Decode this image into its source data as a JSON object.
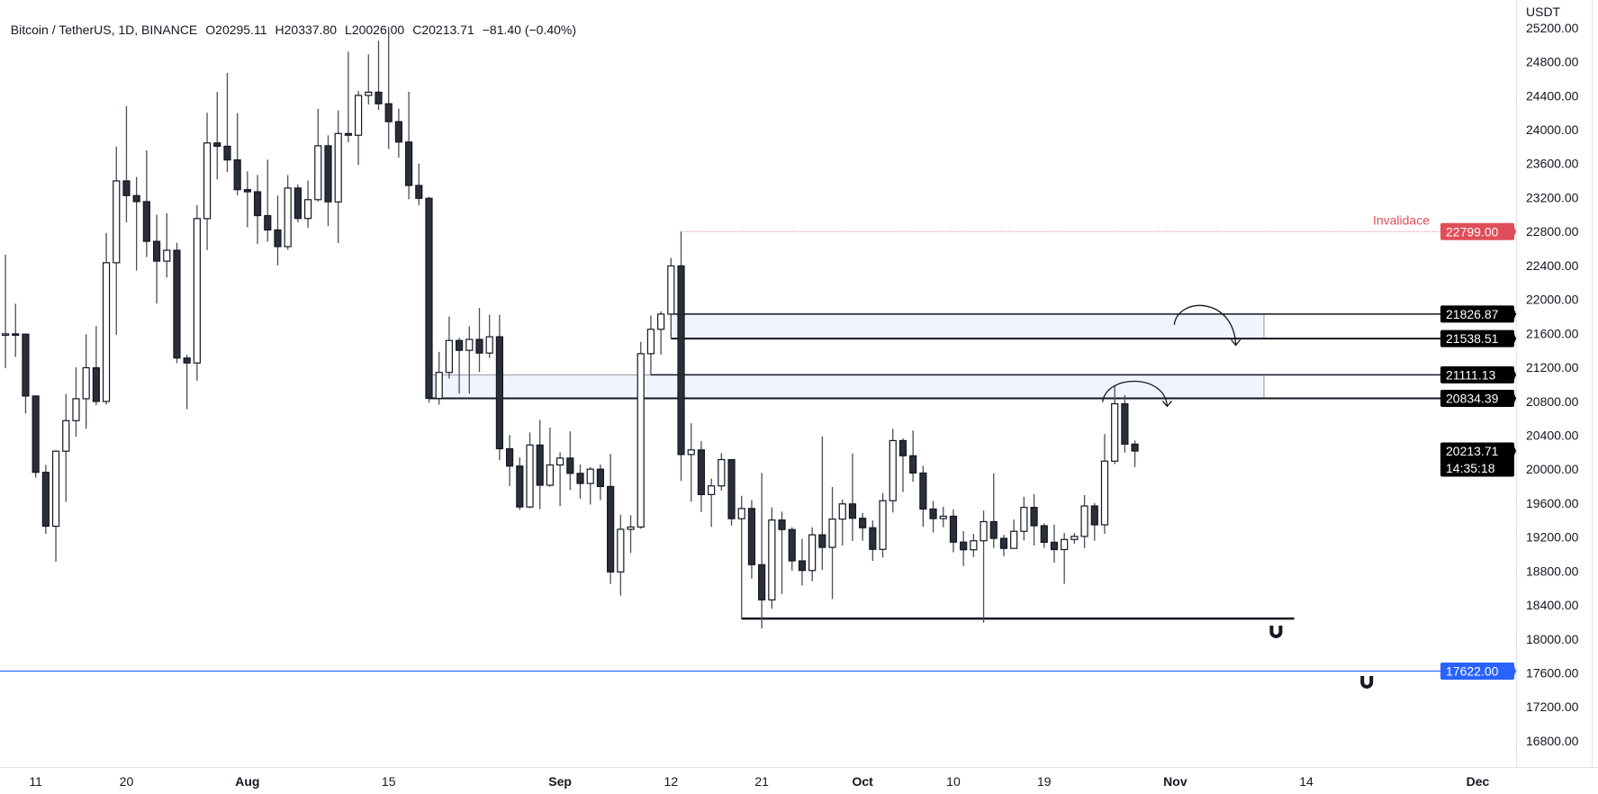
{
  "legend": {
    "symbol": "Bitcoin / TetherUS, 1D, BINANCE",
    "open": "O20295.11",
    "high": "H20337.80",
    "low": "L20026.00",
    "close": "C20213.71",
    "change": "−81.40 (−0.40%)"
  },
  "colors": {
    "bull_body": "#ffffff",
    "bear_body": "#2a2e39",
    "outline": "#131722",
    "wick": "#4a4e59",
    "invalidation": "#e04e58",
    "support_blue": "#2962ff",
    "zone_fill": "#f0f4fd",
    "badge": "#000000"
  },
  "chart_data": {
    "type": "candlestick",
    "title": "Bitcoin / TetherUS, 1D, BINANCE",
    "currency": "USDT",
    "start_date": "2022-07-08",
    "xlim": [
      -0.54,
      149.8
    ],
    "ylim": [
      16492,
      25527
    ],
    "y_ticks": [
      "25200.00",
      "24800.00",
      "24400.00",
      "24000.00",
      "23600.00",
      "23200.00",
      "22800.00",
      "22400.00",
      "22000.00",
      "21600.00",
      "21200.00",
      "20800.00",
      "20400.00",
      "20000.00",
      "19600.00",
      "19200.00",
      "18800.00",
      "18400.00",
      "18000.00",
      "17600.00",
      "17200.00",
      "16800.00"
    ],
    "x_ticks": [
      {
        "label": "11",
        "day": 3,
        "month": false
      },
      {
        "label": "20",
        "day": 12,
        "month": false
      },
      {
        "label": "Aug",
        "day": 24,
        "month": true
      },
      {
        "label": "15",
        "day": 38,
        "month": false
      },
      {
        "label": "Sep",
        "day": 55,
        "month": true
      },
      {
        "label": "12",
        "day": 66,
        "month": false
      },
      {
        "label": "21",
        "day": 75,
        "month": false
      },
      {
        "label": "Oct",
        "day": 85,
        "month": true
      },
      {
        "label": "10",
        "day": 94,
        "month": false
      },
      {
        "label": "19",
        "day": 103,
        "month": false
      },
      {
        "label": "Nov",
        "day": 116,
        "month": true
      },
      {
        "label": "14",
        "day": 129,
        "month": false
      },
      {
        "label": "Dec",
        "day": 146,
        "month": true
      }
    ],
    "ohlc": [
      [
        21590,
        22527,
        21189,
        21594
      ],
      [
        21594,
        21950,
        21322,
        21591
      ],
      [
        21591,
        21592,
        20655,
        20862
      ],
      [
        20862,
        20868,
        19900,
        19963
      ],
      [
        19963,
        20050,
        19240,
        19328
      ],
      [
        19328,
        20224,
        18910,
        20212
      ],
      [
        20212,
        20885,
        19616,
        20572
      ],
      [
        20572,
        21200,
        20383,
        20830
      ],
      [
        20830,
        21588,
        20477,
        21195
      ],
      [
        21195,
        21685,
        20752,
        20798
      ],
      [
        20798,
        22783,
        20762,
        22432
      ],
      [
        22432,
        23800,
        21583,
        23396
      ],
      [
        23396,
        24276,
        22906,
        23223
      ],
      [
        23223,
        23442,
        22341,
        23152
      ],
      [
        23152,
        23756,
        22500,
        22684
      ],
      [
        22684,
        22998,
        21950,
        22451
      ],
      [
        22451,
        23014,
        22257,
        22579
      ],
      [
        22579,
        22666,
        21250,
        21310
      ],
      [
        21310,
        21347,
        20706,
        21251
      ],
      [
        21251,
        23112,
        21042,
        22952
      ],
      [
        22952,
        24199,
        22582,
        23843
      ],
      [
        23843,
        24442,
        23414,
        23804
      ],
      [
        23804,
        24668,
        23502,
        23643
      ],
      [
        23643,
        24194,
        23227,
        23293
      ],
      [
        23293,
        23509,
        22850,
        23268
      ],
      [
        23268,
        23466,
        22655,
        22987
      ],
      [
        22987,
        23647,
        22681,
        22818
      ],
      [
        22818,
        23223,
        22400,
        22622
      ],
      [
        22622,
        23464,
        22586,
        23312
      ],
      [
        23312,
        23354,
        22909,
        22954
      ],
      [
        22954,
        23400,
        22844,
        23175
      ],
      [
        23175,
        24245,
        23154,
        23810
      ],
      [
        23810,
        23933,
        22865,
        23149
      ],
      [
        23149,
        24226,
        22664,
        23954
      ],
      [
        23954,
        24918,
        23852,
        23934
      ],
      [
        23934,
        24456,
        23583,
        24403
      ],
      [
        24403,
        24888,
        24296,
        24441
      ],
      [
        24441,
        25047,
        24232,
        24305
      ],
      [
        24305,
        25211,
        23773,
        24094
      ],
      [
        24094,
        24247,
        23671,
        23854
      ],
      [
        23854,
        24446,
        23180,
        23342
      ],
      [
        23342,
        23600,
        23111,
        23191
      ],
      [
        23191,
        23208,
        20783,
        20834
      ],
      [
        20834,
        21382,
        20761,
        21140
      ],
      [
        21140,
        21800,
        21069,
        21516
      ],
      [
        21516,
        21548,
        20890,
        21400
      ],
      [
        21400,
        21684,
        20890,
        21529
      ],
      [
        21529,
        21900,
        21145,
        21368
      ],
      [
        21368,
        21819,
        21310,
        21560
      ],
      [
        21560,
        21819,
        20107,
        20241
      ],
      [
        20241,
        20402,
        19800,
        20037
      ],
      [
        20037,
        20139,
        19520,
        19555
      ],
      [
        19555,
        20433,
        19540,
        20285
      ],
      [
        20285,
        20580,
        19530,
        19811
      ],
      [
        19811,
        20490,
        19793,
        20050
      ],
      [
        20050,
        20198,
        19565,
        20131
      ],
      [
        20131,
        20445,
        19754,
        19951
      ],
      [
        19951,
        20055,
        19652,
        19832
      ],
      [
        19832,
        20026,
        19583,
        20000
      ],
      [
        20000,
        20056,
        19635,
        19796
      ],
      [
        19796,
        20180,
        18649,
        18790
      ],
      [
        18790,
        19464,
        18510,
        19292
      ],
      [
        19292,
        19458,
        19012,
        19319
      ],
      [
        19319,
        21500,
        19298,
        21361
      ],
      [
        21361,
        21810,
        21111,
        21648
      ],
      [
        21648,
        21860,
        21350,
        21827
      ],
      [
        21827,
        22488,
        21538,
        22395
      ],
      [
        22395,
        22799,
        19860,
        20173
      ],
      [
        20173,
        20541,
        19617,
        20227
      ],
      [
        20227,
        20330,
        19497,
        19701
      ],
      [
        19701,
        19890,
        19320,
        19803
      ],
      [
        19803,
        20189,
        19748,
        20113
      ],
      [
        20113,
        20117,
        19336,
        19417
      ],
      [
        19417,
        19686,
        18232,
        19537
      ],
      [
        19537,
        19634,
        18711,
        18875
      ],
      [
        18875,
        19956,
        18125,
        18461
      ],
      [
        18461,
        19550,
        18356,
        19401
      ],
      [
        19401,
        19500,
        18531,
        19289
      ],
      [
        19289,
        19316,
        18805,
        18920
      ],
      [
        18920,
        19180,
        18629,
        18807
      ],
      [
        18807,
        19315,
        18680,
        19227
      ],
      [
        19227,
        20385,
        18816,
        19079
      ],
      [
        19079,
        19790,
        18471,
        19412
      ],
      [
        19412,
        19645,
        19101,
        19591
      ],
      [
        19591,
        20185,
        19155,
        19422
      ],
      [
        19422,
        19484,
        19159,
        19310
      ],
      [
        19310,
        19395,
        18920,
        19056
      ],
      [
        19056,
        19719,
        18959,
        19629
      ],
      [
        19629,
        20475,
        19490,
        20337
      ],
      [
        20337,
        20365,
        19730,
        20158
      ],
      [
        20158,
        20456,
        19853,
        19955
      ],
      [
        19955,
        20041,
        19320,
        19531
      ],
      [
        19531,
        19627,
        19254,
        19418
      ],
      [
        19418,
        19558,
        19316,
        19446
      ],
      [
        19446,
        19525,
        19020,
        19141
      ],
      [
        19141,
        19270,
        18860,
        19051
      ],
      [
        19051,
        19238,
        18965,
        19157
      ],
      [
        19157,
        19513,
        18190,
        19382
      ],
      [
        19382,
        19951,
        19071,
        19185
      ],
      [
        19185,
        19227,
        18975,
        19067
      ],
      [
        19067,
        19407,
        19063,
        19268
      ],
      [
        19268,
        19676,
        19160,
        19550
      ],
      [
        19550,
        19706,
        19100,
        19334
      ],
      [
        19334,
        19360,
        19073,
        19139
      ],
      [
        19139,
        19347,
        18900,
        19053
      ],
      [
        19053,
        19250,
        18650,
        19172
      ],
      [
        19172,
        19250,
        19120,
        19208
      ],
      [
        19208,
        19695,
        19071,
        19567
      ],
      [
        19567,
        19601,
        19157,
        19345
      ],
      [
        19345,
        20415,
        19238,
        20095
      ],
      [
        20095,
        20990,
        20059,
        20771
      ],
      [
        20771,
        20873,
        20196,
        20295
      ],
      [
        20295.11,
        20337.8,
        20026,
        20213.71
      ]
    ],
    "annotations": {
      "invalidation": {
        "label": "Invalidace",
        "price": 22799,
        "price_label": "22799.00",
        "from_day": 67
      },
      "zones": [
        {
          "top": 21826.87,
          "bottom": 21538.51,
          "top_label": "21826.87",
          "bottom_label": "21538.51",
          "from_day": 66,
          "to_day": 124.8,
          "top_line_from": 66,
          "bottom_line_from": 66
        },
        {
          "top": 21111.13,
          "bottom": 20834.39,
          "top_label": "21111.13",
          "bottom_label": "20834.39",
          "from_day": 42,
          "to_day": 124.8,
          "top_line_from": 64,
          "bottom_line_from": 42
        }
      ],
      "support_line": {
        "price": 18240,
        "from_day": 73,
        "to_day": 127.8
      },
      "blue_line": {
        "price": 17622,
        "price_label": "17622.00"
      },
      "last_price": {
        "price": 20213.71,
        "price_label": "20213.71",
        "countdown": "14:35:18"
      },
      "arrows": [
        {
          "from": [
            115.9,
            21700
          ],
          "peak": [
            118.5,
            21930
          ],
          "to": [
            122.0,
            21460
          ]
        },
        {
          "from": [
            108.8,
            20790
          ],
          "peak": [
            111.5,
            21020
          ],
          "to": [
            115.2,
            20740
          ]
        }
      ],
      "magnets": [
        {
          "day": 126,
          "price": 18083
        },
        {
          "day": 135,
          "price": 17489
        }
      ]
    }
  }
}
